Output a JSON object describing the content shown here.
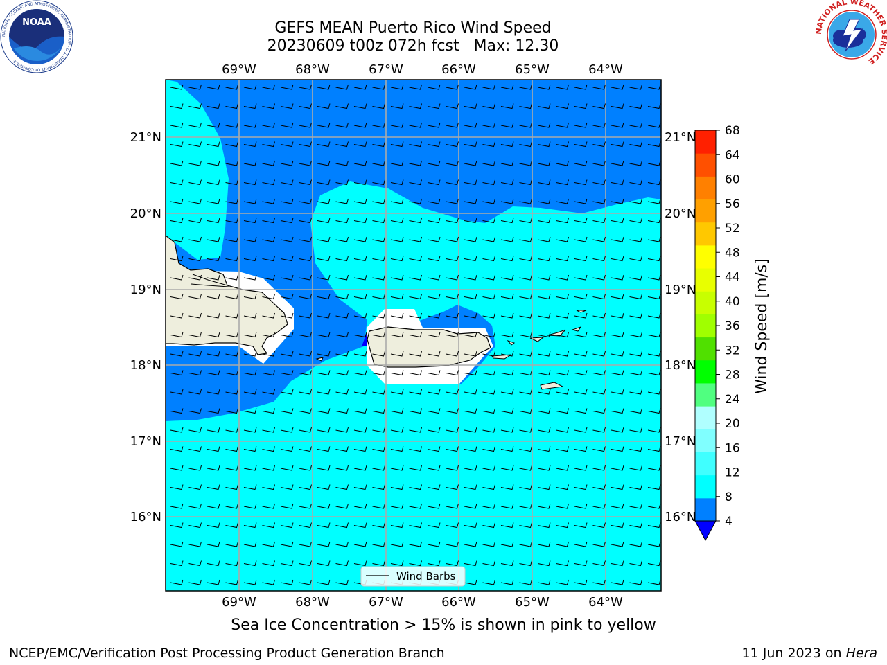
{
  "title": {
    "line1": "GEFS MEAN Puerto Rico Wind Speed",
    "line2": "20230609 t00z 072h fcst   Max: 12.30"
  },
  "map": {
    "lon_labels": [
      "69°W",
      "68°W",
      "67°W",
      "66°W",
      "65°W",
      "64°W"
    ],
    "lat_labels": [
      "21°N",
      "20°N",
      "19°N",
      "18°N",
      "17°N",
      "16°N"
    ],
    "legend_label": "Wind Barbs",
    "colors": {
      "ocean_light": "#00ffff",
      "ocean_dark": "#0080ff",
      "deep_blue": "#0000ff",
      "land": "#eeeedd",
      "grid": "#aaaaaa"
    }
  },
  "colorbar": {
    "label": "Wind Speed [m/s]",
    "ticks": [
      "4",
      "8",
      "12",
      "16",
      "20",
      "24",
      "28",
      "32",
      "36",
      "40",
      "44",
      "48",
      "52",
      "56",
      "60",
      "64",
      "68"
    ],
    "colors": [
      "#0080ff",
      "#00ffff",
      "#40ffff",
      "#80ffff",
      "#b0ffff",
      "#50ff80",
      "#00ff00",
      "#50e000",
      "#a0ff00",
      "#c8ff00",
      "#e8ff00",
      "#ffff00",
      "#ffc800",
      "#ffa000",
      "#ff8000",
      "#ff5000",
      "#ff2000",
      "#ff0000"
    ]
  },
  "caption": "Sea Ice Concentration > 15% is shown in pink to yellow",
  "footer": {
    "left": "NCEP/EMC/Verification Post Processing Product Generation Branch",
    "right_date": "11 Jun 2023 on ",
    "right_machine": "Hera"
  },
  "logos": {
    "noaa_text": "NOAA",
    "noaa_ring": "NATIONAL OCEANIC AND ATMOSPHERIC ADMINISTRATION · U.S. DEPARTMENT OF COMMERCE",
    "nws_ring": "NATIONAL WEATHER SERVICE"
  }
}
